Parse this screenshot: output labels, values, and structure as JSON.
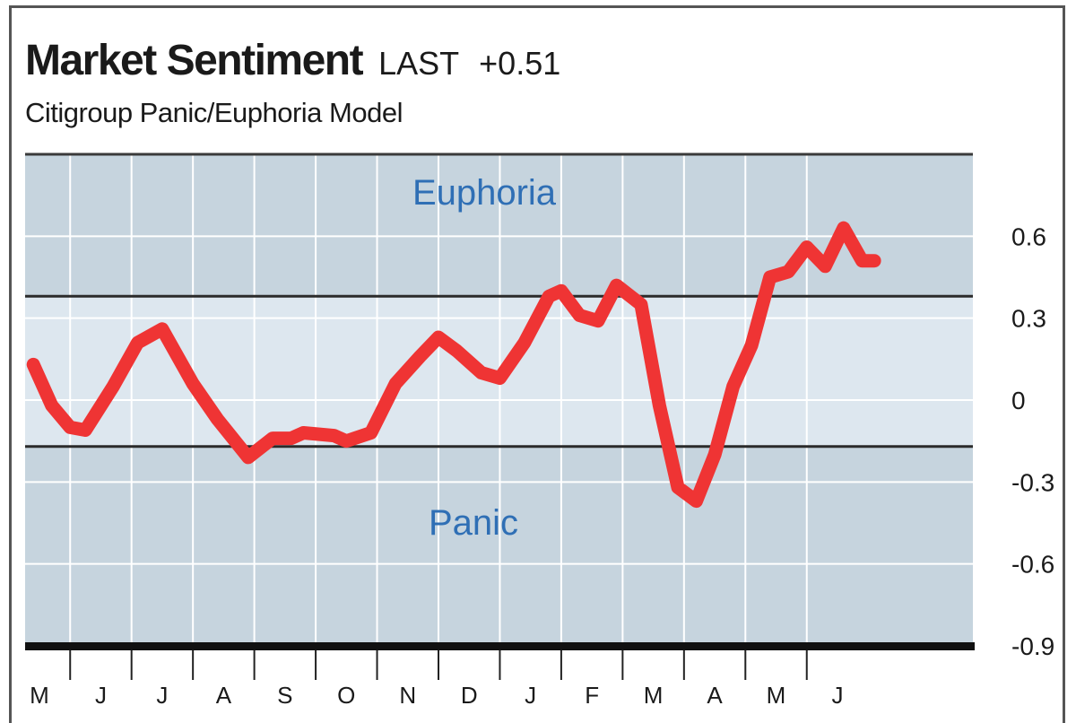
{
  "header": {
    "title": "Market Sentiment",
    "last_label": "LAST",
    "last_value": "+0.51",
    "subtitle": "Citigroup Panic/Euphoria Model"
  },
  "chart_data": {
    "type": "line",
    "title": "Market Sentiment",
    "subtitle": "Citigroup Panic/Euphoria Model",
    "xlabel": "",
    "ylabel": "",
    "ylim": [
      -0.9,
      0.9
    ],
    "yticks": [
      0.6,
      0.3,
      0,
      -0.3,
      -0.6,
      -0.9
    ],
    "ytick_labels": [
      "0.6",
      "0.3",
      "0",
      "-0.3",
      "-0.6",
      "-0.9"
    ],
    "x_month_labels": [
      "M",
      "J",
      "J",
      "A",
      "S",
      "O",
      "N",
      "D",
      "J",
      "F",
      "M",
      "A",
      "M",
      "J"
    ],
    "x_month_positions": [
      0.0,
      1.0,
      2.0,
      3.0,
      4.0,
      5.0,
      6.0,
      7.0,
      8.0,
      9.0,
      10.0,
      11.0,
      12.0,
      13.0
    ],
    "zones": {
      "euphoria": {
        "label": "Euphoria",
        "threshold": 0.38
      },
      "panic": {
        "label": "Panic",
        "threshold": -0.17
      }
    },
    "grid": true,
    "series": [
      {
        "color": "#ef3434",
        "x": [
          -0.1,
          0.2,
          0.5,
          0.75,
          1.2,
          1.6,
          2.0,
          2.5,
          2.9,
          3.4,
          3.8,
          4.1,
          4.3,
          4.8,
          5.0,
          5.4,
          5.8,
          6.2,
          6.5,
          6.8,
          7.2,
          7.5,
          7.9,
          8.3,
          8.5,
          8.8,
          9.1,
          9.4,
          9.8,
          10.1,
          10.4,
          10.7,
          11.0,
          11.3,
          11.6,
          11.9,
          12.2,
          12.5,
          12.8,
          13.1,
          13.4,
          13.6
        ],
        "y": [
          0.13,
          -0.02,
          -0.1,
          -0.11,
          0.05,
          0.21,
          0.26,
          0.06,
          -0.07,
          -0.21,
          -0.14,
          -0.14,
          -0.12,
          -0.13,
          -0.15,
          -0.12,
          0.06,
          0.16,
          0.23,
          0.18,
          0.1,
          0.08,
          0.21,
          0.38,
          0.4,
          0.31,
          0.29,
          0.42,
          0.35,
          -0.02,
          -0.32,
          -0.37,
          -0.2,
          0.05,
          0.2,
          0.45,
          0.47,
          0.56,
          0.49,
          0.63,
          0.51,
          0.51
        ]
      }
    ],
    "colors": {
      "line": "#ef3434",
      "plot_band_outer": "#c6d4de",
      "plot_band_neutral": "#dde7ef",
      "gridline": "#ffffff",
      "zone_text": "#2f6fb5",
      "threshold_line": "#2b2b2b"
    }
  }
}
